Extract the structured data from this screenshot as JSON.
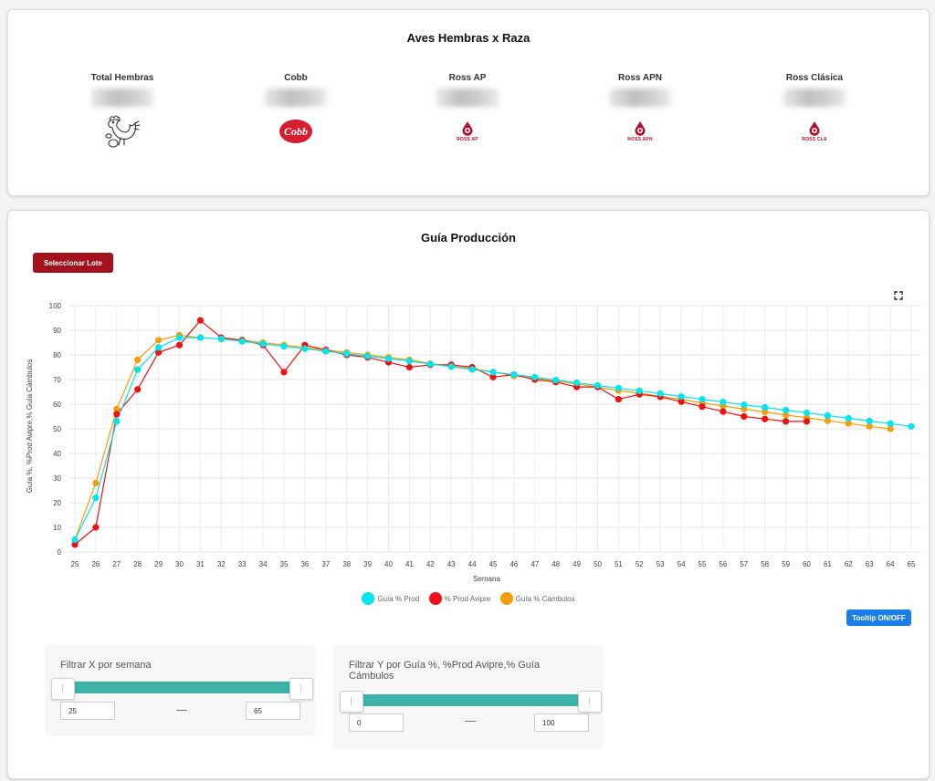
{
  "summary": {
    "title": "Aves Hembras x Raza",
    "breeds": [
      {
        "label": "Total Hembras",
        "icon": "hen-icon"
      },
      {
        "label": "Cobb",
        "icon": "cobb-logo",
        "logo_text": "Cobb"
      },
      {
        "label": "Ross AP",
        "icon": "ross-ap-logo",
        "logo_text": "ROSS AP"
      },
      {
        "label": "Ross APN",
        "icon": "ross-apn-logo",
        "logo_text": "ROSS APN"
      },
      {
        "label": "Ross Clásica",
        "icon": "ross-cla-logo",
        "logo_text": "ROSS CLA"
      }
    ]
  },
  "production": {
    "title": "Guía Producción",
    "select_button": "Seleccionar Lote",
    "tooltip_button": "Tooltip ON/OFF",
    "colors": {
      "guia": "#00e5ee",
      "avipre": "#ee1111",
      "cambulos": "#f59e0b",
      "accent_red": "#a3111d",
      "accent_blue": "#1a7ee6",
      "slider": "#3cb3a6"
    }
  },
  "chart_data": {
    "type": "line",
    "xlabel": "Semana",
    "ylabel": "Guía %, %Prod Avipre,% Guía Cámbulos",
    "ylim": [
      0,
      100
    ],
    "yticks": [
      0,
      10,
      20,
      30,
      40,
      50,
      60,
      70,
      80,
      90,
      100
    ],
    "x": [
      25,
      26,
      27,
      28,
      29,
      30,
      31,
      32,
      33,
      34,
      35,
      36,
      37,
      38,
      39,
      40,
      41,
      42,
      43,
      44,
      45,
      46,
      47,
      48,
      49,
      50,
      51,
      52,
      53,
      54,
      55,
      56,
      57,
      58,
      59,
      60,
      61,
      62,
      63,
      64,
      65
    ],
    "series": [
      {
        "name": "Guía % Prod",
        "color": "#00e5ee",
        "values": [
          5,
          22,
          53,
          74,
          83,
          87,
          87,
          86.5,
          85.5,
          84.5,
          83.5,
          82.5,
          81.5,
          80.5,
          79.5,
          78.5,
          77.5,
          76.3,
          75.2,
          74.1,
          73,
          72,
          71,
          69.8,
          68.7,
          67.6,
          66.5,
          65.4,
          64.3,
          63.1,
          62,
          60.9,
          59.8,
          58.7,
          57.6,
          56.5,
          55.4,
          54.3,
          53.2,
          52.1,
          51
        ]
      },
      {
        "name": "% Prod Avipre",
        "color": "#ee1111",
        "values": [
          3,
          10,
          56,
          66,
          81,
          84,
          94,
          87,
          86,
          84,
          73,
          84,
          82,
          80,
          79,
          77,
          75,
          76,
          76,
          75,
          71,
          72,
          70,
          69,
          67,
          67,
          62,
          64,
          63,
          61,
          59,
          57,
          55,
          54,
          53,
          53,
          null,
          null,
          null,
          null,
          null
        ]
      },
      {
        "name": "Guía % Cámbulos",
        "color": "#f59e0b",
        "values": [
          5,
          28,
          58,
          78,
          86,
          88,
          87,
          86.5,
          86,
          85,
          84,
          83,
          82,
          81,
          80,
          79,
          78,
          76.5,
          75.5,
          74.5,
          73,
          71.5,
          70.5,
          69.5,
          68.2,
          67,
          65.5,
          64.5,
          63.2,
          62,
          60.5,
          59.3,
          58,
          56.8,
          55.6,
          54.5,
          53.3,
          52.2,
          51,
          50,
          null
        ]
      }
    ]
  },
  "filters": {
    "x_filter": {
      "label": "Filtrar X por semana",
      "min": "25",
      "max": "65"
    },
    "y_filter": {
      "label": "Filtrar Y por Guía %, %Prod Avipre,% Guía Cámbulos",
      "min": "0",
      "max": "100"
    }
  }
}
